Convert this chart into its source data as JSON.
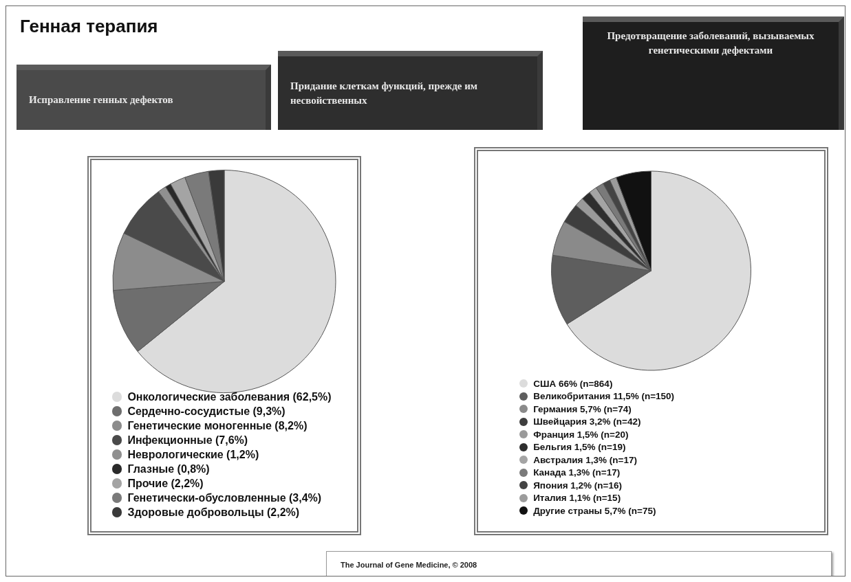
{
  "chart_data": [
    {
      "type": "other",
      "title": "Генная терапия",
      "annotations": [
        "Исправление генных дефектов",
        "Придание клеткам функций, прежде им несвойственных",
        "Предотвращение заболеваний, вызываемых генетическими дефектами"
      ]
    },
    {
      "type": "pie",
      "legend": "bottom",
      "categories": [
        "Онкологические заболевания (62,5%)",
        "Сердечно-сосудистые (9,3%)",
        "Генетические моногенные (8,2%)",
        "Инфекционные (7,6%)",
        "Неврологические (1,2%)",
        "Глазные (0,8%)",
        "Прочие (2,2%)",
        "Генетически-обусловленные (3,4%)",
        "Здоровые добровольцы (2,2%)"
      ],
      "values": [
        62.5,
        9.3,
        8.2,
        7.6,
        1.2,
        0.8,
        2.2,
        3.4,
        2.2
      ],
      "colors": [
        "#dcdcdc",
        "#6e6e6e",
        "#8c8c8c",
        "#4a4a4a",
        "#909090",
        "#2a2a2a",
        "#a4a4a4",
        "#7a7a7a",
        "#3a3a3a"
      ]
    },
    {
      "type": "pie",
      "legend": "bottom",
      "categories": [
        "США 66% (n=864)",
        "Великобритания 11,5% (n=150)",
        "Германия 5,7% (n=74)",
        "Швейцария 3,2% (n=42)",
        "Франция 1,5% (n=20)",
        "Бельгия 1,5% (n=19)",
        "Австралия 1,3% (n=17)",
        "Канада 1,3% (n=17)",
        "Япония 1,2% (n=16)",
        "Италия 1,1% (n=15)",
        "Другие страны 5,7% (n=75)"
      ],
      "values": [
        66,
        11.5,
        5.7,
        3.2,
        1.5,
        1.5,
        1.3,
        1.3,
        1.2,
        1.1,
        5.7
      ],
      "colors": [
        "#dcdcdc",
        "#5e5e5e",
        "#8a8a8a",
        "#3e3e3e",
        "#9a9a9a",
        "#2e2e2e",
        "#a4a4a4",
        "#7a7a7a",
        "#444444",
        "#9c9c9c",
        "#111111"
      ],
      "annotations": [
        "The Journal of Gene Medicine, © 2008"
      ]
    }
  ]
}
